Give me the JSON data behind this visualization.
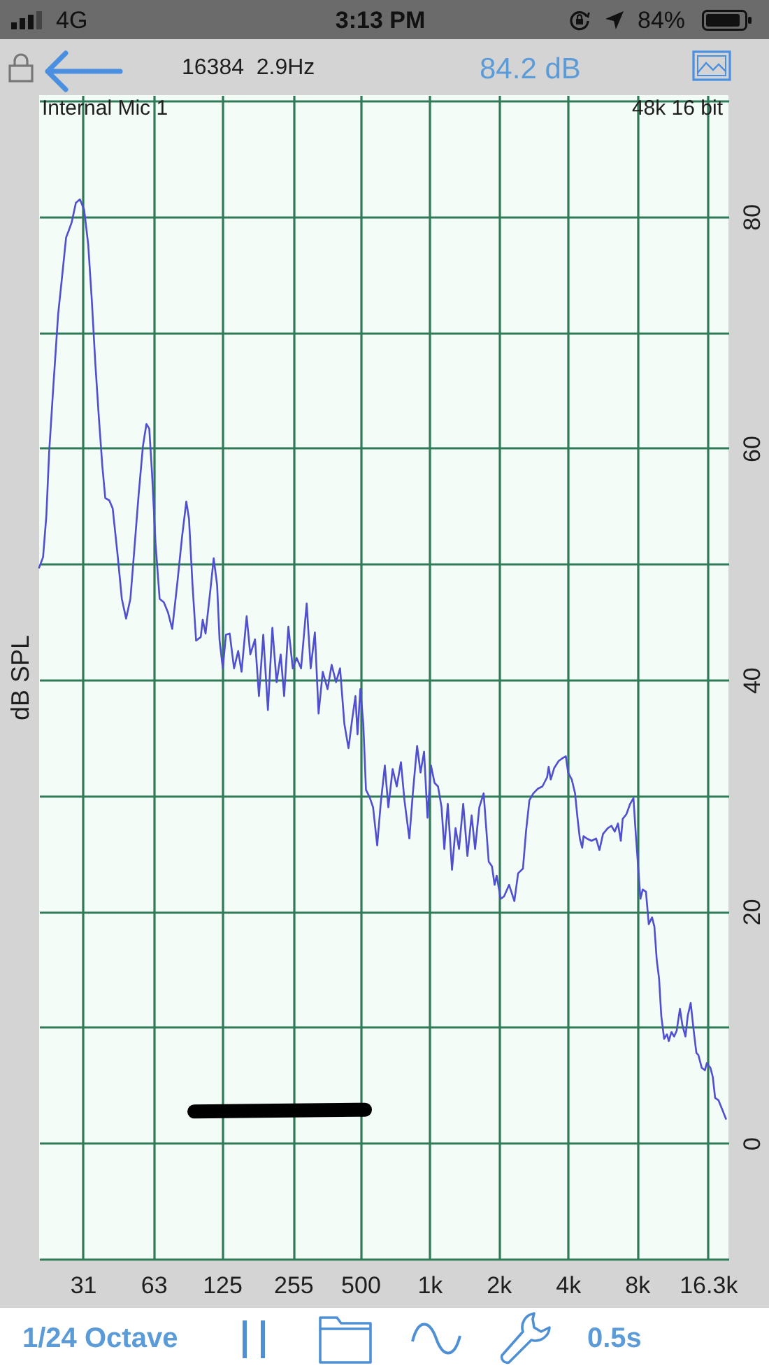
{
  "chart_data": {
    "type": "line",
    "ylabel": "dB SPL",
    "annotations": [
      "4G",
      "3:13 PM",
      "84%",
      "16384  2.9Hz",
      "84.2 dB",
      "Internal Mic 1",
      "48k 16 bit",
      "1/24 Octave",
      "0.5s"
    ],
    "x": [
      20,
      20.8,
      21.5,
      22.1,
      23.1,
      24.2,
      25.1,
      26.2,
      26.9,
      27.7,
      28.9,
      30.1,
      31.4,
      32.7,
      33.9,
      35.1,
      36.4,
      37.7,
      38.8,
      40.4,
      41.8,
      44.0,
      45.8,
      47.8,
      49.9,
      51.6,
      54.2,
      56.6,
      58.6,
      60.3,
      62.0,
      64.2,
      66.9,
      69.8,
      72.8,
      75.9,
      79.7,
      83.8,
      87.4,
      89.8,
      93.0,
      96.4,
      101,
      103,
      106,
      111,
      115,
      119,
      122,
      126,
      130,
      135,
      141,
      147,
      152,
      160,
      166,
      174,
      181,
      189,
      198,
      207,
      216,
      225,
      233,
      243,
      254,
      264,
      276,
      292,
      304,
      317,
      329,
      343,
      360,
      375,
      392,
      408,
      426,
      444,
      460,
      476,
      486,
      500,
      515,
      529,
      548,
      568,
      592,
      613,
      639,
      662,
      691,
      720,
      751,
      778,
      817,
      846,
      883,
      914,
      947,
      980,
      1015,
      1052,
      1089,
      1128,
      1160,
      1201,
      1253,
      1298,
      1344,
      1402,
      1462,
      1525,
      1579,
      1647,
      1720,
      1810,
      1870,
      1920,
      1960,
      2040,
      2110,
      2220,
      2340,
      2430,
      2550,
      2630,
      2720,
      2830,
      2960,
      3100,
      3250,
      3300,
      3370,
      3490,
      3650,
      3830,
      3920,
      4010,
      4160,
      4300,
      4400,
      4510,
      4620,
      4680,
      4840,
      5070,
      5310,
      5490,
      5690,
      5970,
      6190,
      6400,
      6610,
      6800,
      6930,
      7190,
      7470,
      7720,
      7900,
      8090,
      8280,
      8470,
      8750,
      9000,
      9300,
      9520,
      9750,
      9980,
      10200,
      10500,
      10800,
      11000,
      11300,
      11600,
      11900,
      12300,
      12600,
      13000,
      13300,
      13700,
      14100,
      14500,
      14800,
      15300,
      15800,
      16100,
      16700,
      17100,
      17500,
      18100,
      18800,
      19500
    ],
    "series": [
      {
        "color": "#4f4fcf",
        "values": [
          49.7,
          50.6,
          54.2,
          59.6,
          65.6,
          71.6,
          74.6,
          78.2,
          78.8,
          79.5,
          81.2,
          81.5,
          80.6,
          77.6,
          72.8,
          67.4,
          62.6,
          58.4,
          55.7,
          55.5,
          54.8,
          50.6,
          47.0,
          45.3,
          47.0,
          50.6,
          56.0,
          60.2,
          62.1,
          61.7,
          57.8,
          51.8,
          47.0,
          46.7,
          45.8,
          44.4,
          48.2,
          52.4,
          55.4,
          53.9,
          48.2,
          43.4,
          43.7,
          45.2,
          44.0,
          47.6,
          50.5,
          48.2,
          43.4,
          41.0,
          43.9,
          44.0,
          41.0,
          42.5,
          40.7,
          45.5,
          42.2,
          43.5,
          38.6,
          43.9,
          37.4,
          44.5,
          39.8,
          42.2,
          38.6,
          44.6,
          41.0,
          41.9,
          41.0,
          46.6,
          41.0,
          44.1,
          37.1,
          40.7,
          39.2,
          41.3,
          39.8,
          41.0,
          36.2,
          34.1,
          36.5,
          38.6,
          35.3,
          39.2,
          36.2,
          30.5,
          29.9,
          29.0,
          25.7,
          29.3,
          32.6,
          29.0,
          32.3,
          30.8,
          32.9,
          29.6,
          26.3,
          30.2,
          34.3,
          32.0,
          33.8,
          28.1,
          32.6,
          31.1,
          30.8,
          29.0,
          25.4,
          29.3,
          23.6,
          27.2,
          25.4,
          29.3,
          24.8,
          28.3,
          25.4,
          29.0,
          30.2,
          24.3,
          23.9,
          22.3,
          23.1,
          21.1,
          21.3,
          22.3,
          20.9,
          23.3,
          23.7,
          26.9,
          29.6,
          30.2,
          30.6,
          30.8,
          31.6,
          32.5,
          31.4,
          32.4,
          33.0,
          33.3,
          33.4,
          32.0,
          31.4,
          30.2,
          28.2,
          26.3,
          25.5,
          26.5,
          26.3,
          26.1,
          26.3,
          25.3,
          26.7,
          27.2,
          27.4,
          26.9,
          27.6,
          26.1,
          28.0,
          28.4,
          29.3,
          29.8,
          26.7,
          23.9,
          21.1,
          21.9,
          21.7,
          18.9,
          19.5,
          18.7,
          15.8,
          14.2,
          11.0,
          9.0,
          9.4,
          8.8,
          9.6,
          9.2,
          9.7,
          11.6,
          10.2,
          9.2,
          11.0,
          12.1,
          9.8,
          7.8,
          7.6,
          6.5,
          6.3,
          6.9,
          6.5,
          5.7,
          3.9,
          3.7,
          2.9,
          2.1
        ]
      }
    ],
    "log": "x",
    "xlim": [
      20,
      20000
    ],
    "xticks": [
      31,
      63,
      125,
      255,
      500,
      {
        "value": 1000,
        "label": "1k"
      },
      {
        "value": 2000,
        "label": "2k"
      },
      {
        "value": 4000,
        "label": "4k"
      },
      {
        "value": 8000,
        "label": "8k"
      },
      {
        "value": 16300,
        "label": "16.3k"
      }
    ],
    "ylim": [
      -10,
      90.5
    ],
    "yticks": [
      0,
      {
        "value": 10,
        "label": null
      },
      20,
      {
        "value": 30,
        "label": null
      },
      40,
      {
        "value": 50,
        "label": null
      },
      60,
      {
        "value": 70,
        "label": null
      },
      80,
      {
        "value": 90,
        "label": null
      }
    ],
    "grid": true
  }
}
